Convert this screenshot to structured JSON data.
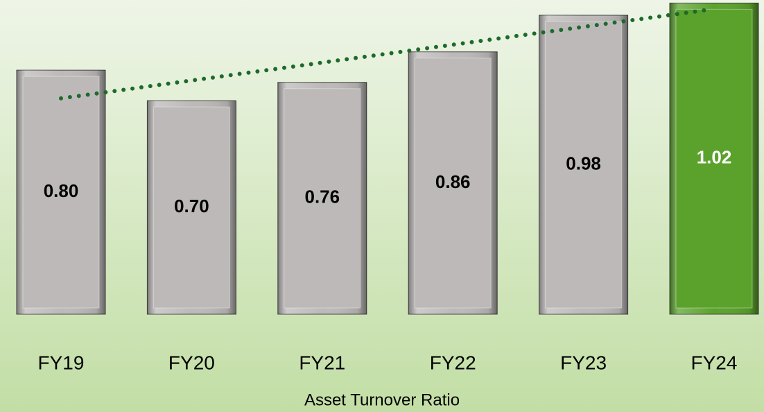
{
  "chart_data": {
    "type": "bar",
    "title": "Asset Turnover Ratio",
    "categories": [
      "FY19",
      "FY20",
      "FY21",
      "FY22",
      "FY23",
      "FY24"
    ],
    "values": [
      0.8,
      0.7,
      0.76,
      0.86,
      0.98,
      1.02
    ],
    "value_labels": [
      "0.80",
      "0.70",
      "0.76",
      "0.86",
      "0.98",
      "1.02"
    ],
    "colors": [
      "#bdb9b9",
      "#bdb9b9",
      "#bdb9b9",
      "#bdb9b9",
      "#bdb9b9",
      "#5ba22d"
    ],
    "label_colors": [
      "#000000",
      "#000000",
      "#000000",
      "#000000",
      "#000000",
      "#ffffff"
    ],
    "ylim": [
      0,
      1.03
    ],
    "trendline": "linear",
    "trendline_color": "#1d6a2a"
  }
}
